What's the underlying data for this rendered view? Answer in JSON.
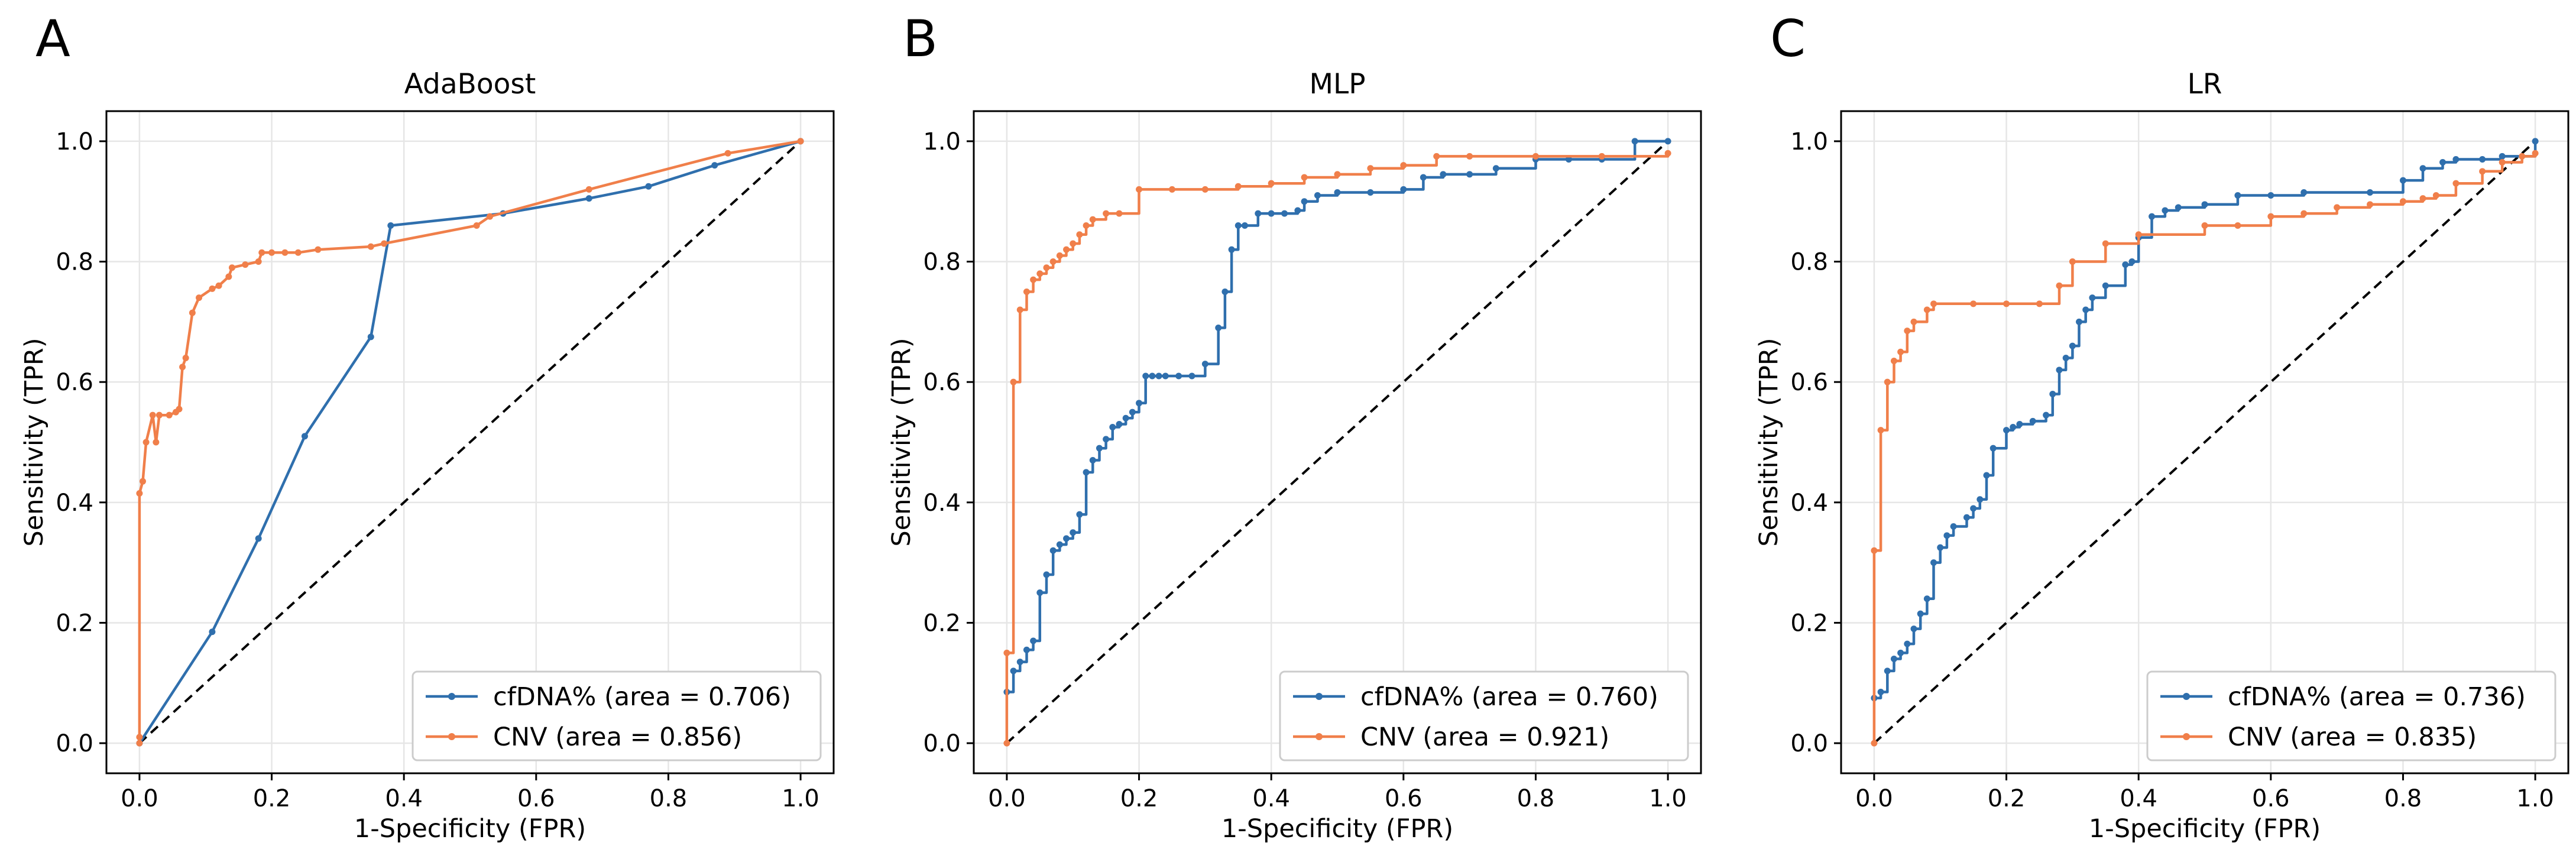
{
  "colors": {
    "cfdna": "#2f6fad",
    "cnv": "#f07f4a"
  },
  "chart_data": [
    {
      "type": "line",
      "panel_letter": "A",
      "title": "AdaBoost",
      "xlabel": "1-Specificity (FPR)",
      "ylabel": "Sensitivity (TPR)",
      "xlim": [
        0,
        1
      ],
      "ylim": [
        0,
        1
      ],
      "xticks": [
        "0.0",
        "0.2",
        "0.4",
        "0.6",
        "0.8",
        "1.0"
      ],
      "yticks": [
        "0.0",
        "0.2",
        "0.4",
        "0.6",
        "0.8",
        "1.0"
      ],
      "grid": true,
      "legend_position": "lower-right",
      "diagonal": true,
      "series": [
        {
          "name": "cfDNA% (area = 0.706)",
          "color": "#2f6fad",
          "step": false,
          "x": [
            0,
            0.11,
            0.18,
            0.25,
            0.35,
            0.38,
            0.55,
            0.68,
            0.77,
            0.87,
            1.0
          ],
          "y": [
            0,
            0.185,
            0.34,
            0.51,
            0.675,
            0.86,
            0.88,
            0.905,
            0.925,
            0.96,
            1.0
          ]
        },
        {
          "name": "CNV (area = 0.856)",
          "color": "#f07f4a",
          "step": false,
          "x": [
            0,
            0,
            0,
            0.005,
            0.01,
            0.02,
            0.025,
            0.03,
            0.045,
            0.055,
            0.06,
            0.065,
            0.07,
            0.08,
            0.09,
            0.11,
            0.12,
            0.135,
            0.14,
            0.16,
            0.18,
            0.185,
            0.2,
            0.22,
            0.24,
            0.27,
            0.35,
            0.37,
            0.51,
            0.53,
            0.68,
            0.89,
            1.0
          ],
          "y": [
            0,
            0.01,
            0.415,
            0.435,
            0.5,
            0.545,
            0.5,
            0.545,
            0.545,
            0.55,
            0.555,
            0.625,
            0.64,
            0.715,
            0.74,
            0.755,
            0.76,
            0.775,
            0.79,
            0.795,
            0.8,
            0.815,
            0.815,
            0.815,
            0.815,
            0.82,
            0.825,
            0.83,
            0.86,
            0.875,
            0.92,
            0.98,
            1.0
          ]
        }
      ]
    },
    {
      "type": "line",
      "panel_letter": "B",
      "title": "MLP",
      "xlabel": "1-Specificity (FPR)",
      "ylabel": "Sensitivity (TPR)",
      "xlim": [
        0,
        1
      ],
      "ylim": [
        0,
        1
      ],
      "xticks": [
        "0.0",
        "0.2",
        "0.4",
        "0.6",
        "0.8",
        "1.0"
      ],
      "yticks": [
        "0.0",
        "0.2",
        "0.4",
        "0.6",
        "0.8",
        "1.0"
      ],
      "grid": true,
      "legend_position": "lower-right",
      "diagonal": true,
      "series": [
        {
          "name": "cfDNA% (area = 0.760)",
          "color": "#2f6fad",
          "step": true,
          "x": [
            0,
            0.01,
            0.02,
            0.03,
            0.04,
            0.05,
            0.06,
            0.07,
            0.08,
            0.09,
            0.1,
            0.11,
            0.12,
            0.13,
            0.14,
            0.15,
            0.16,
            0.17,
            0.18,
            0.19,
            0.2,
            0.21,
            0.22,
            0.23,
            0.24,
            0.26,
            0.28,
            0.3,
            0.32,
            0.33,
            0.34,
            0.35,
            0.36,
            0.38,
            0.4,
            0.42,
            0.44,
            0.45,
            0.47,
            0.5,
            0.55,
            0.6,
            0.63,
            0.66,
            0.7,
            0.74,
            0.8,
            0.85,
            0.9,
            0.95,
            1.0
          ],
          "y": [
            0.085,
            0.12,
            0.135,
            0.155,
            0.17,
            0.25,
            0.28,
            0.32,
            0.33,
            0.34,
            0.35,
            0.38,
            0.45,
            0.47,
            0.49,
            0.505,
            0.525,
            0.53,
            0.54,
            0.55,
            0.565,
            0.61,
            0.61,
            0.61,
            0.61,
            0.61,
            0.61,
            0.63,
            0.69,
            0.75,
            0.82,
            0.86,
            0.86,
            0.88,
            0.88,
            0.88,
            0.885,
            0.9,
            0.91,
            0.915,
            0.915,
            0.92,
            0.94,
            0.945,
            0.945,
            0.955,
            0.97,
            0.97,
            0.97,
            1.0,
            1.0
          ]
        },
        {
          "name": "CNV (area = 0.921)",
          "color": "#f07f4a",
          "step": true,
          "x": [
            0,
            0,
            0.01,
            0.02,
            0.03,
            0.04,
            0.05,
            0.06,
            0.07,
            0.08,
            0.09,
            0.1,
            0.11,
            0.12,
            0.13,
            0.15,
            0.17,
            0.2,
            0.25,
            0.3,
            0.35,
            0.4,
            0.45,
            0.5,
            0.55,
            0.6,
            0.65,
            0.7,
            0.8,
            0.9,
            1.0
          ],
          "y": [
            0,
            0.15,
            0.6,
            0.72,
            0.75,
            0.77,
            0.78,
            0.79,
            0.8,
            0.81,
            0.82,
            0.83,
            0.845,
            0.86,
            0.87,
            0.88,
            0.88,
            0.92,
            0.92,
            0.92,
            0.925,
            0.93,
            0.94,
            0.945,
            0.955,
            0.96,
            0.975,
            0.975,
            0.975,
            0.975,
            0.98
          ]
        }
      ]
    },
    {
      "type": "line",
      "panel_letter": "C",
      "title": "LR",
      "xlabel": "1-Specificity (FPR)",
      "ylabel": "Sensitivity (TPR)",
      "xlim": [
        0,
        1
      ],
      "ylim": [
        0,
        1
      ],
      "xticks": [
        "0.0",
        "0.2",
        "0.4",
        "0.6",
        "0.8",
        "1.0"
      ],
      "yticks": [
        "0.0",
        "0.2",
        "0.4",
        "0.6",
        "0.8",
        "1.0"
      ],
      "grid": true,
      "legend_position": "lower-right",
      "diagonal": true,
      "series": [
        {
          "name": "cfDNA% (area = 0.736)",
          "color": "#2f6fad",
          "step": true,
          "x": [
            0,
            0.01,
            0.02,
            0.03,
            0.04,
            0.05,
            0.06,
            0.07,
            0.08,
            0.09,
            0.1,
            0.11,
            0.12,
            0.14,
            0.15,
            0.16,
            0.17,
            0.18,
            0.2,
            0.21,
            0.22,
            0.24,
            0.26,
            0.27,
            0.28,
            0.29,
            0.3,
            0.31,
            0.32,
            0.33,
            0.35,
            0.38,
            0.39,
            0.4,
            0.42,
            0.44,
            0.46,
            0.5,
            0.55,
            0.6,
            0.65,
            0.75,
            0.8,
            0.83,
            0.86,
            0.88,
            0.92,
            0.95,
            1.0
          ],
          "y": [
            0.075,
            0.085,
            0.12,
            0.14,
            0.15,
            0.165,
            0.19,
            0.215,
            0.24,
            0.3,
            0.325,
            0.345,
            0.36,
            0.375,
            0.39,
            0.405,
            0.445,
            0.49,
            0.52,
            0.525,
            0.53,
            0.535,
            0.545,
            0.58,
            0.62,
            0.64,
            0.66,
            0.7,
            0.72,
            0.74,
            0.76,
            0.795,
            0.8,
            0.84,
            0.875,
            0.885,
            0.89,
            0.895,
            0.91,
            0.91,
            0.915,
            0.915,
            0.935,
            0.955,
            0.965,
            0.97,
            0.97,
            0.975,
            1.0
          ]
        },
        {
          "name": "CNV (area = 0.835)",
          "color": "#f07f4a",
          "step": true,
          "x": [
            0,
            0,
            0.01,
            0.02,
            0.03,
            0.04,
            0.05,
            0.06,
            0.08,
            0.09,
            0.15,
            0.2,
            0.25,
            0.28,
            0.3,
            0.35,
            0.4,
            0.5,
            0.55,
            0.6,
            0.65,
            0.7,
            0.75,
            0.8,
            0.83,
            0.85,
            0.88,
            0.92,
            0.95,
            0.98,
            1.0
          ],
          "y": [
            0,
            0.32,
            0.52,
            0.6,
            0.635,
            0.65,
            0.685,
            0.7,
            0.72,
            0.73,
            0.73,
            0.73,
            0.73,
            0.76,
            0.8,
            0.83,
            0.845,
            0.86,
            0.86,
            0.875,
            0.88,
            0.89,
            0.895,
            0.9,
            0.905,
            0.91,
            0.93,
            0.95,
            0.965,
            0.975,
            0.98
          ]
        }
      ]
    }
  ]
}
